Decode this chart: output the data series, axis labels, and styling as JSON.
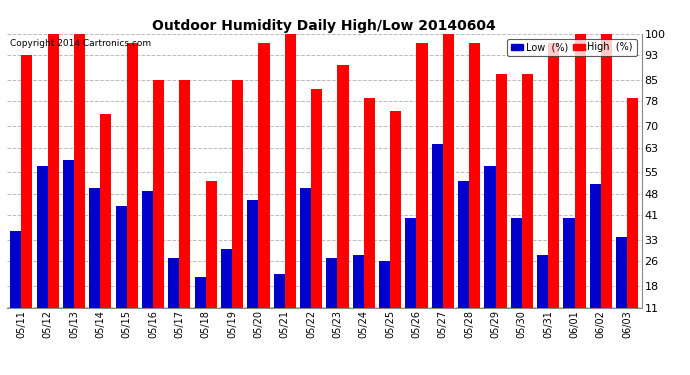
{
  "title": "Outdoor Humidity Daily High/Low 20140604",
  "copyright": "Copyright 2014 Cartronics.com",
  "ylabel_right_ticks": [
    11,
    18,
    26,
    33,
    41,
    48,
    55,
    63,
    70,
    78,
    85,
    93,
    100
  ],
  "ylim": [
    11,
    100
  ],
  "ymin": 11,
  "background_color": "#ffffff",
  "grid_color": "#bbbbbb",
  "bar_width": 0.42,
  "dates": [
    "05/11",
    "05/12",
    "05/13",
    "05/14",
    "05/15",
    "05/16",
    "05/17",
    "05/18",
    "05/19",
    "05/20",
    "05/21",
    "05/22",
    "05/23",
    "05/24",
    "05/25",
    "05/26",
    "05/27",
    "05/28",
    "05/29",
    "05/30",
    "05/31",
    "06/01",
    "06/02",
    "06/03"
  ],
  "high": [
    93,
    100,
    100,
    74,
    97,
    85,
    85,
    52,
    85,
    97,
    100,
    82,
    90,
    79,
    75,
    97,
    100,
    97,
    87,
    87,
    97,
    100,
    100,
    79
  ],
  "low": [
    36,
    57,
    59,
    50,
    44,
    49,
    27,
    21,
    30,
    46,
    22,
    50,
    27,
    28,
    26,
    40,
    64,
    52,
    57,
    40,
    28,
    40,
    51,
    34
  ],
  "high_color": "#ff0000",
  "low_color": "#0000cc",
  "legend_low_label": "Low  (%)",
  "legend_high_label": "High  (%)"
}
